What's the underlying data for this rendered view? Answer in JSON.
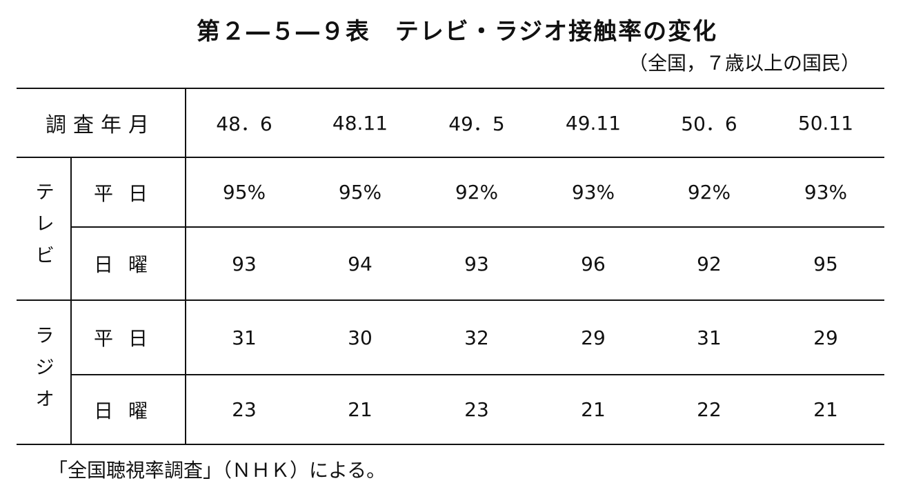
{
  "title": "第２―５―９表　テレビ・ラジオ接触率の変化",
  "subtitle": "（全国，７歳以上の国民）",
  "table": {
    "header_label": "調査年月",
    "columns": [
      "48．6",
      "48.11",
      "49．5",
      "49.11",
      "50．6",
      "50.11"
    ],
    "groups": [
      {
        "label": "テレビ",
        "rows": [
          {
            "label": "平日",
            "values": [
              "95%",
              "95%",
              "92%",
              "93%",
              "92%",
              "93%"
            ]
          },
          {
            "label": "日曜",
            "values": [
              "93",
              "94",
              "93",
              "96",
              "92",
              "95"
            ]
          }
        ]
      },
      {
        "label": "ラジオ",
        "rows": [
          {
            "label": "平日",
            "values": [
              "31",
              "30",
              "32",
              "29",
              "31",
              "29"
            ]
          },
          {
            "label": "日曜",
            "values": [
              "23",
              "21",
              "23",
              "21",
              "22",
              "21"
            ]
          }
        ]
      }
    ]
  },
  "footnote": "「全国聴視率調査」（ＮＨＫ）による。"
}
